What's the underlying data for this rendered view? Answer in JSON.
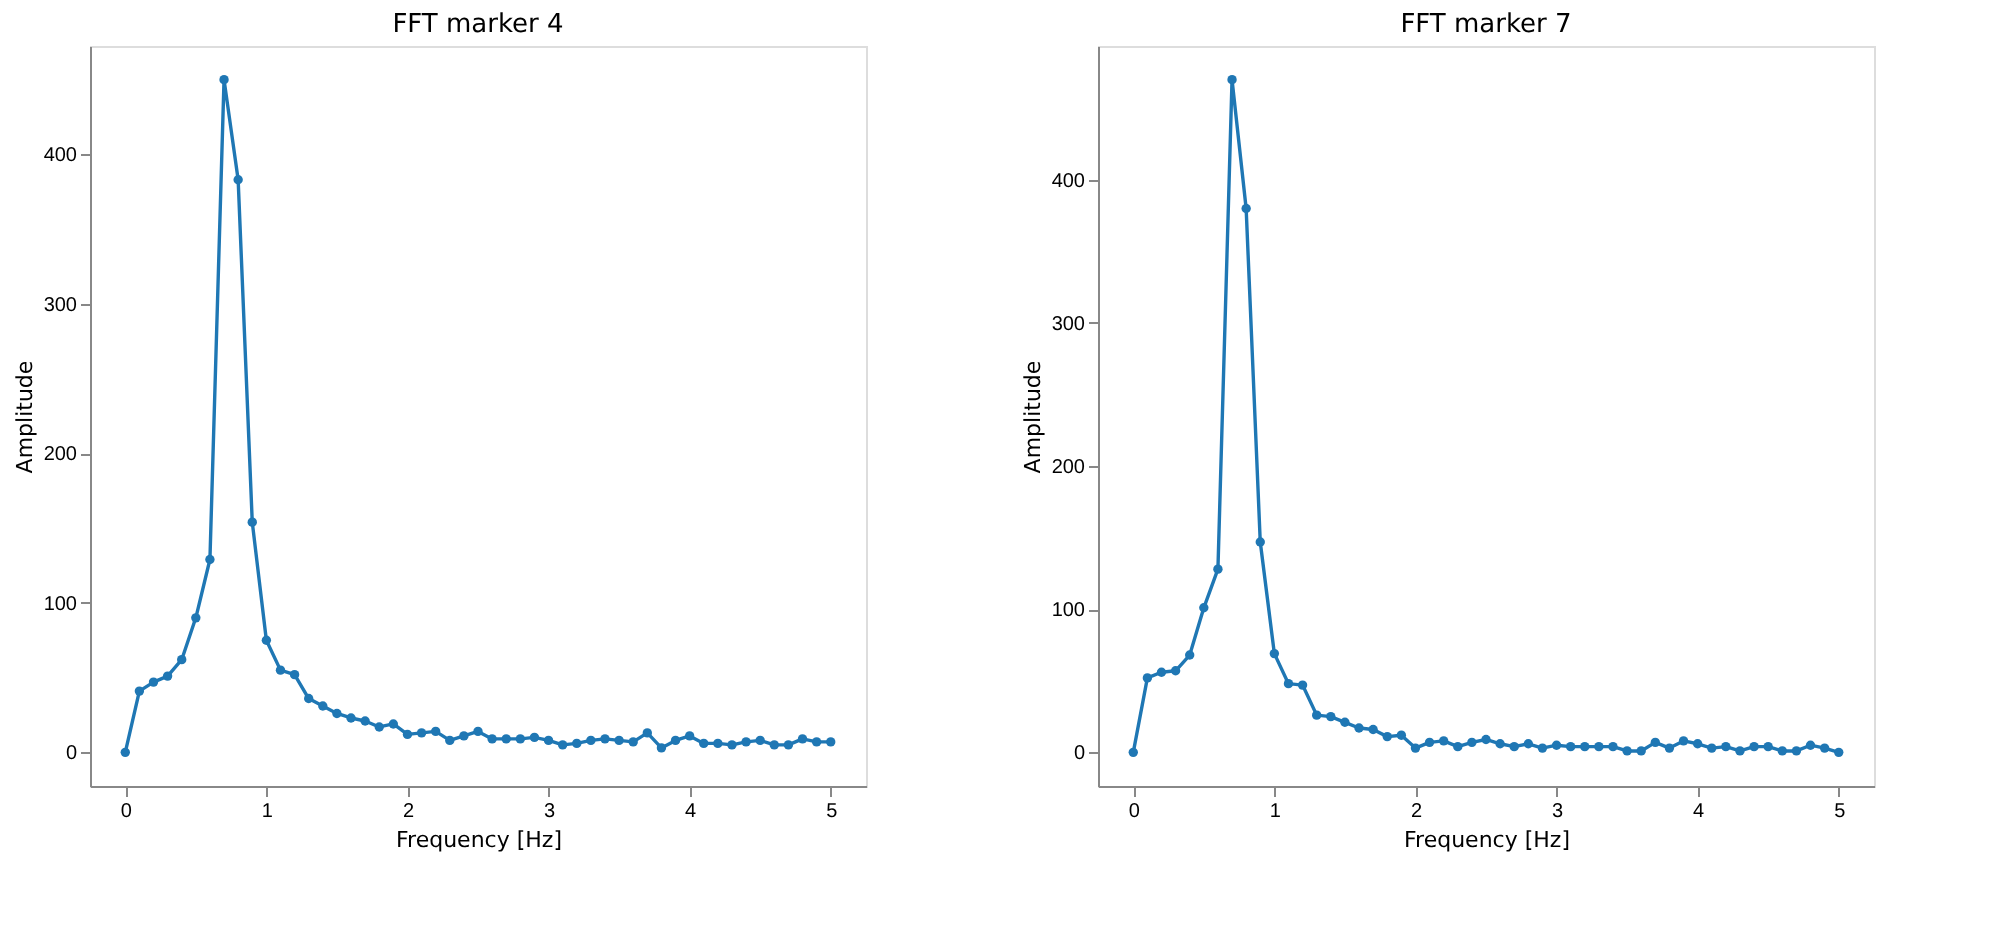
{
  "chart_data": [
    {
      "type": "line",
      "title": "FFT marker 4",
      "xlabel": "Frequency [Hz]",
      "ylabel": "Amplitude",
      "marker": "circle",
      "line_style": "solid",
      "x": [
        0,
        0.1,
        0.2,
        0.3,
        0.4,
        0.5,
        0.6,
        0.7,
        0.8,
        0.9,
        1.0,
        1.1,
        1.2,
        1.3,
        1.4,
        1.5,
        1.6,
        1.7,
        1.8,
        1.9,
        2.0,
        2.1,
        2.2,
        2.3,
        2.4,
        2.5,
        2.6,
        2.7,
        2.8,
        2.9,
        3.0,
        3.1,
        3.2,
        3.3,
        3.4,
        3.5,
        3.6,
        3.7,
        3.8,
        3.9,
        4.0,
        4.1,
        4.2,
        4.3,
        4.4,
        4.5,
        4.6,
        4.7,
        4.8,
        4.9,
        5.0
      ],
      "series": [
        {
          "color": "#1f77b4",
          "values": [
            0,
            41,
            47,
            51,
            62,
            90,
            129,
            450,
            383,
            154,
            75,
            55,
            52,
            36,
            31,
            26,
            23,
            21,
            17,
            19,
            12,
            13,
            14,
            8,
            11,
            14,
            9,
            9,
            9,
            10,
            8,
            5,
            6,
            8,
            9,
            8,
            7,
            13,
            3,
            8,
            11,
            6,
            6,
            5,
            7,
            8,
            5,
            5,
            9,
            7,
            7
          ]
        }
      ],
      "xlim": [
        -0.25,
        5.25
      ],
      "xticks": [
        0,
        1,
        2,
        3,
        4,
        5
      ],
      "ylim": [
        -22.5,
        472.5
      ],
      "yticks": [
        0,
        100,
        200,
        300,
        400
      ]
    },
    {
      "type": "line",
      "title": "FFT marker 7",
      "xlabel": "Frequency [Hz]",
      "ylabel": "Amplitude",
      "marker": "circle",
      "line_style": "solid",
      "x": [
        0,
        0.1,
        0.2,
        0.3,
        0.4,
        0.5,
        0.6,
        0.7,
        0.8,
        0.9,
        1.0,
        1.1,
        1.2,
        1.3,
        1.4,
        1.5,
        1.6,
        1.7,
        1.8,
        1.9,
        2.0,
        2.1,
        2.2,
        2.3,
        2.4,
        2.5,
        2.6,
        2.7,
        2.8,
        2.9,
        3.0,
        3.1,
        3.2,
        3.3,
        3.4,
        3.5,
        3.6,
        3.7,
        3.8,
        3.9,
        4.0,
        4.1,
        4.2,
        4.3,
        4.4,
        4.5,
        4.6,
        4.7,
        4.8,
        4.9,
        5.0
      ],
      "series": [
        {
          "color": "#1f77b4",
          "values": [
            0,
            52,
            56,
            57,
            68,
            101,
            128,
            470,
            380,
            147,
            69,
            48,
            47,
            26,
            25,
            21,
            17,
            16,
            11,
            12,
            3,
            7,
            8,
            4,
            7,
            9,
            6,
            4,
            6,
            3,
            5,
            4,
            4,
            4,
            4,
            1,
            1,
            7,
            3,
            8,
            6,
            3,
            4,
            1,
            4,
            4,
            1,
            1,
            5,
            3,
            0
          ]
        }
      ],
      "xlim": [
        -0.25,
        5.25
      ],
      "xticks": [
        0,
        1,
        2,
        3,
        4,
        5
      ],
      "ylim": [
        -23.5,
        493.5
      ],
      "yticks": [
        0,
        100,
        200,
        300,
        400
      ]
    }
  ]
}
